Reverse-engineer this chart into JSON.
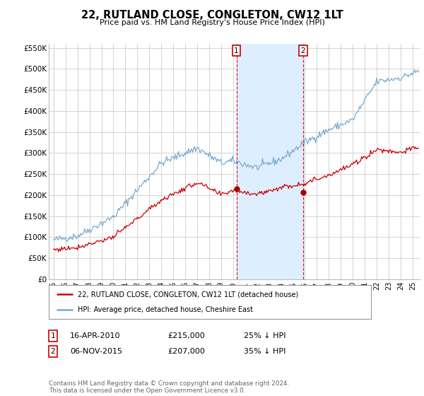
{
  "title": "22, RUTLAND CLOSE, CONGLETON, CW12 1LT",
  "subtitle": "Price paid vs. HM Land Registry's House Price Index (HPI)",
  "yticks": [
    0,
    50000,
    100000,
    150000,
    200000,
    250000,
    300000,
    350000,
    400000,
    450000,
    500000,
    550000
  ],
  "ytick_labels": [
    "£0",
    "£50K",
    "£100K",
    "£150K",
    "£200K",
    "£250K",
    "£300K",
    "£350K",
    "£400K",
    "£450K",
    "£500K",
    "£550K"
  ],
  "ylim": [
    0,
    560000
  ],
  "xlim_left": 1994.6,
  "xlim_right": 2025.6,
  "sale1_date": 2010.28,
  "sale1_price": 215000,
  "sale2_date": 2015.84,
  "sale2_price": 207000,
  "marker_color": "#aa0000",
  "hpi_color": "#7aaad0",
  "sale_color": "#cc0000",
  "legend_sale_label": "22, RUTLAND CLOSE, CONGLETON, CW12 1LT (detached house)",
  "legend_hpi_label": "HPI: Average price, detached house, Cheshire East",
  "note_date1": "16-APR-2010",
  "note_price1": "£215,000",
  "note_pct1": "25% ↓ HPI",
  "note_date2": "06-NOV-2015",
  "note_price2": "£207,000",
  "note_pct2": "35% ↓ HPI",
  "footer": "Contains HM Land Registry data © Crown copyright and database right 2024.\nThis data is licensed under the Open Government Licence v3.0.",
  "background_color": "#ffffff",
  "grid_color": "#cccccc",
  "span_color": "#ddeeff"
}
